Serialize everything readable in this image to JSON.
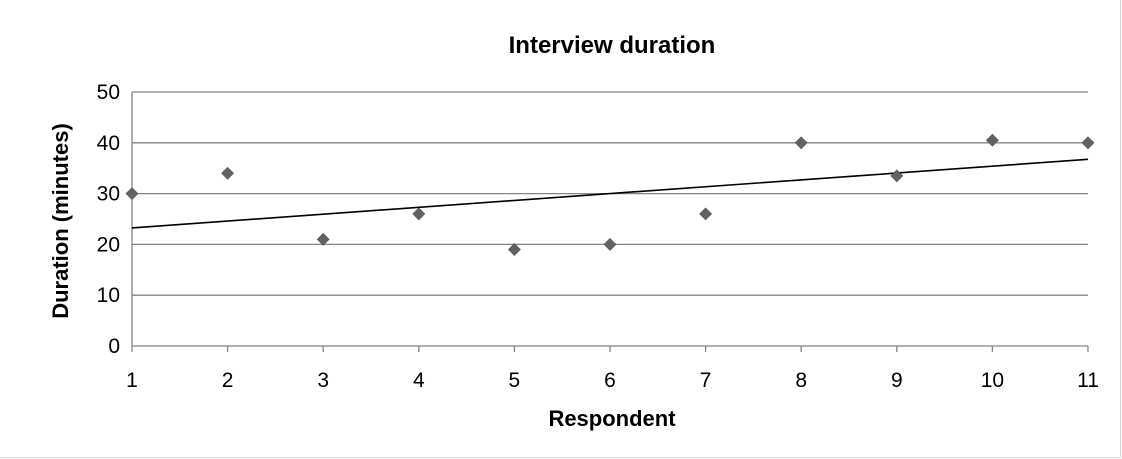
{
  "chart_data": {
    "type": "scatter",
    "title": "Interview duration",
    "xlabel": "Respondent",
    "ylabel": "Duration (minutes)",
    "x": [
      1,
      2,
      3,
      4,
      5,
      6,
      7,
      8,
      9,
      10,
      11
    ],
    "y": [
      30,
      34,
      21,
      26,
      19,
      20,
      26,
      40,
      33.5,
      40.5,
      40
    ],
    "xlim": [
      1,
      11
    ],
    "ylim": [
      0,
      50
    ],
    "x_ticks": [
      "1",
      "2",
      "3",
      "4",
      "5",
      "6",
      "7",
      "8",
      "9",
      "10",
      "11"
    ],
    "y_ticks": [
      "0",
      "10",
      "20",
      "30",
      "40",
      "50"
    ],
    "grid": true,
    "trendline": {
      "type": "linear"
    },
    "marker_color": "#626262"
  }
}
